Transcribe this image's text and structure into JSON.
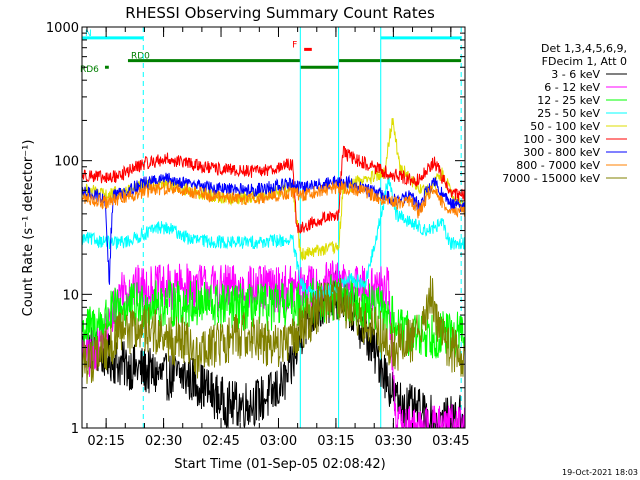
{
  "chart_data": {
    "type": "line",
    "title": "RHESSI Observing Summary Count Rates",
    "xlabel": "Start Time (01-Sep-05 02:08:42)",
    "ylabel": "Count Rate (s⁻¹ detector⁻¹)",
    "y_scale": "log",
    "ylim": [
      1,
      1000
    ],
    "y_ticks": [
      {
        "value": 1,
        "label": "1"
      },
      {
        "value": 10,
        "label": "10"
      },
      {
        "value": 100,
        "label": "100"
      },
      {
        "value": 1000,
        "label": "1000"
      }
    ],
    "xlim_minutes": [
      0,
      100
    ],
    "x_ticks": [
      {
        "minute": 6.3,
        "label": "02:15"
      },
      {
        "minute": 21.3,
        "label": "02:30"
      },
      {
        "minute": 36.3,
        "label": "02:45"
      },
      {
        "minute": 51.3,
        "label": "03:00"
      },
      {
        "minute": 66.3,
        "label": "03:15"
      },
      {
        "minute": 81.3,
        "label": "03:30"
      },
      {
        "minute": 96.3,
        "label": "03:45"
      }
    ],
    "legend": {
      "placement": "right",
      "header": [
        "Det 1,3,4,5,6,9,",
        "FDecim 1, Att 0"
      ]
    },
    "series": [
      {
        "name": "3 - 6 keV",
        "color": "#000000",
        "points": [
          [
            2,
            4
          ],
          [
            6,
            3.5
          ],
          [
            10,
            3
          ],
          [
            14,
            2.8
          ],
          [
            18,
            2.6
          ],
          [
            22,
            2.4
          ],
          [
            26,
            2.5
          ],
          [
            30,
            2.2
          ],
          [
            34,
            1.8
          ],
          [
            38,
            1.5
          ],
          [
            42,
            1.5
          ],
          [
            46,
            1.6
          ],
          [
            50,
            1.8
          ],
          [
            54,
            2.5
          ],
          [
            58,
            6
          ],
          [
            62,
            8
          ],
          [
            66,
            10
          ],
          [
            70,
            8
          ],
          [
            74,
            5
          ],
          [
            78,
            3
          ],
          [
            82,
            1.6
          ],
          [
            86,
            1.4
          ],
          [
            90,
            1.2
          ],
          [
            94,
            1.1
          ],
          [
            99,
            1.2
          ]
        ]
      },
      {
        "name": "6 - 12 keV",
        "color": "#ff00ff",
        "points": [
          [
            2,
            3.5
          ],
          [
            6,
            5
          ],
          [
            10,
            11
          ],
          [
            20,
            11
          ],
          [
            30,
            11.5
          ],
          [
            40,
            11
          ],
          [
            50,
            11
          ],
          [
            56,
            11
          ],
          [
            62,
            11.5
          ],
          [
            66,
            12
          ],
          [
            70,
            11.5
          ],
          [
            74,
            11
          ],
          [
            78,
            11
          ],
          [
            80,
            10.8
          ],
          [
            82,
            1
          ],
          [
            99,
            1
          ]
        ]
      },
      {
        "name": "12 - 25 keV",
        "color": "#00ff00",
        "points": [
          [
            2,
            5.5
          ],
          [
            6,
            6.5
          ],
          [
            10,
            8
          ],
          [
            20,
            8.5
          ],
          [
            30,
            8.5
          ],
          [
            40,
            8
          ],
          [
            50,
            8
          ],
          [
            56,
            8.5
          ],
          [
            60,
            9
          ],
          [
            66,
            9.5
          ],
          [
            70,
            9
          ],
          [
            76,
            8
          ],
          [
            80,
            7
          ],
          [
            84,
            5
          ],
          [
            90,
            5
          ],
          [
            99,
            5
          ]
        ]
      },
      {
        "name": "25 - 50 keV",
        "color": "#00ffff",
        "points": [
          [
            2,
            26
          ],
          [
            5,
            25
          ],
          [
            8,
            24
          ],
          [
            12,
            25
          ],
          [
            16,
            28
          ],
          [
            20,
            32
          ],
          [
            24,
            30
          ],
          [
            28,
            26
          ],
          [
            32,
            25
          ],
          [
            38,
            24.5
          ],
          [
            44,
            24.5
          ],
          [
            50,
            25
          ],
          [
            55,
            25.5
          ],
          [
            57,
            12
          ],
          [
            60,
            10
          ],
          [
            66,
            11
          ],
          [
            70,
            13
          ],
          [
            74,
            12
          ],
          [
            78,
            38
          ],
          [
            80,
            75
          ],
          [
            82,
            40
          ],
          [
            86,
            34
          ],
          [
            90,
            30
          ],
          [
            94,
            34
          ],
          [
            96,
            24
          ],
          [
            99,
            24
          ]
        ]
      },
      {
        "name": "50 - 100 keV",
        "color": "#dddd00",
        "points": [
          [
            2,
            60
          ],
          [
            6,
            55
          ],
          [
            10,
            58
          ],
          [
            16,
            65
          ],
          [
            22,
            68
          ],
          [
            30,
            58
          ],
          [
            38,
            52
          ],
          [
            46,
            54
          ],
          [
            52,
            60
          ],
          [
            55,
            65
          ],
          [
            57,
            20
          ],
          [
            60,
            21
          ],
          [
            64,
            22
          ],
          [
            67,
            22
          ],
          [
            68,
            60
          ],
          [
            72,
            70
          ],
          [
            76,
            75
          ],
          [
            79,
            80
          ],
          [
            81,
            210
          ],
          [
            83,
            90
          ],
          [
            86,
            70
          ],
          [
            90,
            58
          ],
          [
            94,
            80
          ],
          [
            97,
            55
          ],
          [
            99,
            45
          ]
        ]
      },
      {
        "name": "100 - 300 keV",
        "color": "#ff0000",
        "points": [
          [
            2,
            78
          ],
          [
            6,
            73
          ],
          [
            10,
            78
          ],
          [
            16,
            95
          ],
          [
            22,
            103
          ],
          [
            28,
            95
          ],
          [
            34,
            87
          ],
          [
            40,
            84
          ],
          [
            46,
            83
          ],
          [
            52,
            90
          ],
          [
            55,
            95
          ],
          [
            56,
            30
          ],
          [
            60,
            34
          ],
          [
            64,
            38
          ],
          [
            67,
            40
          ],
          [
            68,
            115
          ],
          [
            72,
            100
          ],
          [
            76,
            90
          ],
          [
            80,
            80
          ],
          [
            84,
            75
          ],
          [
            87,
            70
          ],
          [
            90,
            85
          ],
          [
            92,
            98
          ],
          [
            94,
            75
          ],
          [
            96,
            58
          ],
          [
            99,
            55
          ]
        ]
      },
      {
        "name": "300 - 800 keV",
        "color": "#0000ff",
        "points": [
          [
            2,
            57
          ],
          [
            4,
            55
          ],
          [
            6,
            50
          ],
          [
            7,
            12
          ],
          [
            8,
            55
          ],
          [
            12,
            60
          ],
          [
            16,
            68
          ],
          [
            22,
            73
          ],
          [
            28,
            68
          ],
          [
            34,
            62
          ],
          [
            40,
            60
          ],
          [
            46,
            61
          ],
          [
            52,
            65
          ],
          [
            55,
            67
          ],
          [
            57,
            62
          ],
          [
            62,
            66
          ],
          [
            66,
            70
          ],
          [
            70,
            68
          ],
          [
            74,
            62
          ],
          [
            78,
            56
          ],
          [
            82,
            50
          ],
          [
            86,
            55
          ],
          [
            88,
            45
          ],
          [
            90,
            60
          ],
          [
            92,
            70
          ],
          [
            94,
            55
          ],
          [
            96,
            48
          ],
          [
            99,
            45
          ]
        ]
      },
      {
        "name": "800 - 7000 keV",
        "color": "#ff8000",
        "points": [
          [
            2,
            52
          ],
          [
            6,
            48
          ],
          [
            8,
            50
          ],
          [
            12,
            55
          ],
          [
            16,
            58
          ],
          [
            22,
            63
          ],
          [
            28,
            59
          ],
          [
            34,
            55
          ],
          [
            40,
            52
          ],
          [
            46,
            52
          ],
          [
            52,
            56
          ],
          [
            55,
            58
          ],
          [
            57,
            55
          ],
          [
            62,
            60
          ],
          [
            66,
            63
          ],
          [
            70,
            62
          ],
          [
            74,
            58
          ],
          [
            78,
            52
          ],
          [
            82,
            48
          ],
          [
            86,
            50
          ],
          [
            88,
            40
          ],
          [
            90,
            55
          ],
          [
            92,
            62
          ],
          [
            94,
            48
          ],
          [
            96,
            44
          ],
          [
            99,
            42
          ]
        ]
      },
      {
        "name": "7000 - 15000 keV",
        "color": "#808000",
        "points": [
          [
            2,
            3.2
          ],
          [
            6,
            4
          ],
          [
            10,
            5
          ],
          [
            14,
            5.5
          ],
          [
            18,
            5.5
          ],
          [
            22,
            4.5
          ],
          [
            26,
            4.5
          ],
          [
            30,
            3.5
          ],
          [
            34,
            4
          ],
          [
            38,
            4.5
          ],
          [
            42,
            5
          ],
          [
            46,
            4.8
          ],
          [
            50,
            4
          ],
          [
            54,
            4.5
          ],
          [
            58,
            6
          ],
          [
            62,
            8
          ],
          [
            66,
            9.5
          ],
          [
            70,
            8
          ],
          [
            74,
            6
          ],
          [
            78,
            5
          ],
          [
            82,
            4
          ],
          [
            86,
            4.5
          ],
          [
            89,
            6
          ],
          [
            91,
            10
          ],
          [
            93,
            6
          ],
          [
            96,
            4
          ],
          [
            99,
            3.5
          ]
        ]
      }
    ],
    "intervals": [
      {
        "label": "N",
        "color": "#00ffff",
        "start": 0,
        "end": 16,
        "level": 830
      },
      {
        "label": "",
        "color": "#00ffff",
        "start": 78,
        "end": 99,
        "level": 830
      },
      {
        "label": "F",
        "color": "#ff0000",
        "start": 58,
        "end": 60,
        "level": 680
      },
      {
        "label": "RD0",
        "color": "#007f00",
        "start": 12,
        "end": 57,
        "level": 560
      },
      {
        "label": "",
        "color": "#007f00",
        "start": 57,
        "end": 67,
        "level": 500
      },
      {
        "label": "",
        "color": "#007f00",
        "start": 67,
        "end": 99,
        "level": 560
      },
      {
        "label": "RD6",
        "color": "#007f00",
        "start": 6,
        "end": 7,
        "level": 500
      }
    ],
    "vertical_lines": [
      {
        "minute": 0,
        "style": "solid"
      },
      {
        "minute": 16,
        "style": "dashed"
      },
      {
        "minute": 57,
        "style": "solid"
      },
      {
        "minute": 67,
        "style": "solid"
      },
      {
        "minute": 78,
        "style": "solid"
      },
      {
        "minute": 99,
        "style": "dashed"
      }
    ]
  },
  "footer": {
    "timestamp": "19-Oct-2021 18:03"
  }
}
